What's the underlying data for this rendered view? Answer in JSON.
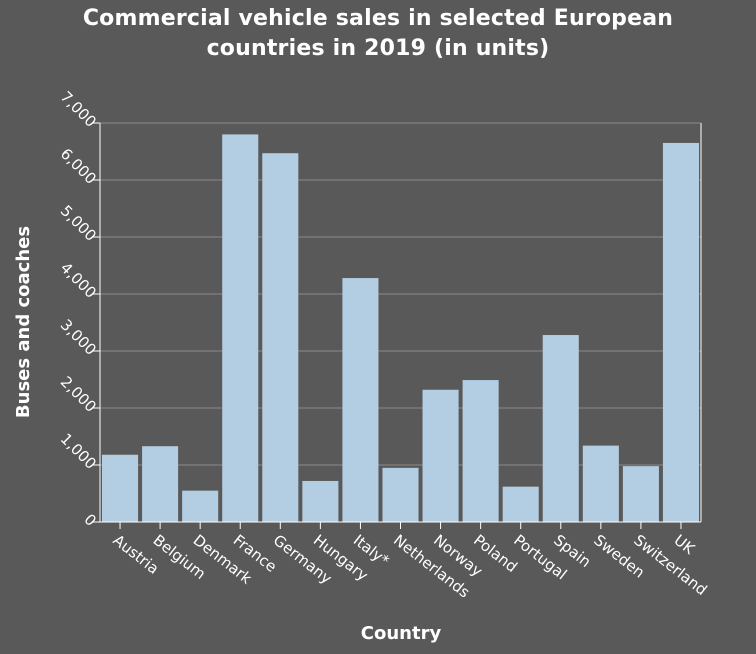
{
  "chart_data": {
    "type": "bar",
    "title_lines": [
      "Commercial vehicle sales in selected European",
      "countries in 2019 (in units)"
    ],
    "xlabel": "Country",
    "ylabel": "Buses and coaches",
    "categories": [
      "Austria",
      "Belgium",
      "Denmark",
      "France",
      "Germany",
      "Hungary",
      "Italy*",
      "Netherlands",
      "Norway",
      "Poland",
      "Portugal",
      "Spain",
      "Sweden",
      "Switzerland",
      "UK"
    ],
    "values": [
      1180,
      1330,
      550,
      6800,
      6470,
      720,
      4280,
      950,
      2320,
      2490,
      620,
      3280,
      1340,
      980,
      6650
    ],
    "ylim": [
      0,
      7000
    ],
    "yticks": [
      0,
      1000,
      2000,
      3000,
      4000,
      5000,
      6000,
      7000
    ],
    "ytick_labels": [
      "0",
      "1,000",
      "2,000",
      "3,000",
      "4,000",
      "5,000",
      "6,000",
      "7,000"
    ],
    "grid": true,
    "legend": "none",
    "colors": {
      "background": "#595959",
      "bar": "#b3cde3",
      "grid": "#8c8c8c",
      "axis": "#ffffff",
      "text": "#ffffff"
    }
  }
}
